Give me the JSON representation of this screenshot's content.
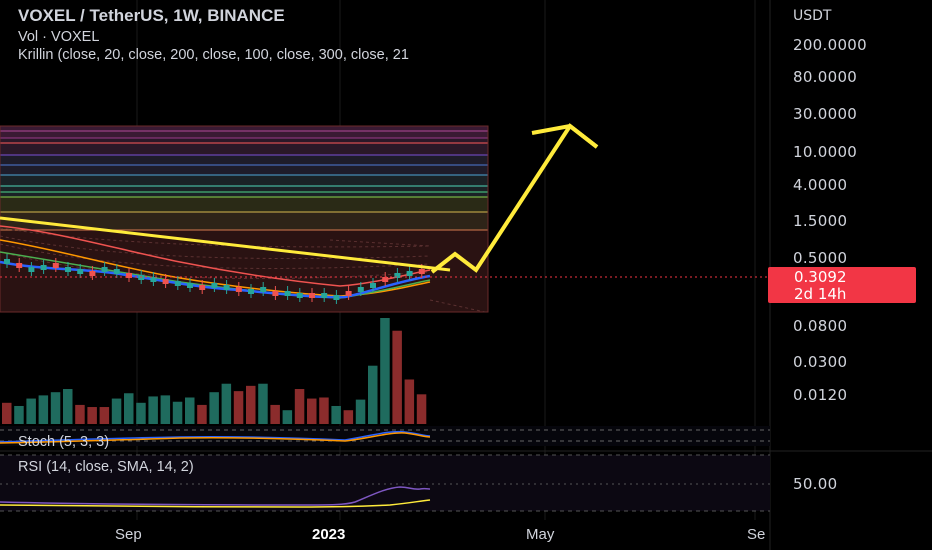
{
  "header": {
    "title": "VOXEL / TetherUS, 1W, BINANCE",
    "volume": "Vol · VOXEL",
    "indicator": "Krillin (close, 20, close, 200, close, 100, close, 300, close, 21"
  },
  "price_axis": {
    "currency": "USDT",
    "ticks": [
      "200.0000",
      "80.0000",
      "30.0000",
      "10.0000",
      "4.0000",
      "1.5000",
      "0.5000",
      "0.0800",
      "0.0300",
      "0.0120"
    ],
    "rsi_tick": "50.00"
  },
  "current_price": {
    "value": "0.3092",
    "countdown": "2d 14h"
  },
  "time_axis": {
    "ticks": [
      "Sep",
      "2023",
      "May",
      "Se"
    ]
  },
  "panes": {
    "stoch_label": "Stoch (5, 3, 3)",
    "rsi_label": "RSI (14, close, SMA, 14, 2)"
  },
  "colors": {
    "up": "#26a69a",
    "down": "#ef5350",
    "arrow": "#ffeb3b",
    "price_tag": "#f23645",
    "ma_blue": "#2962ff",
    "ma_green": "#4caf50"
  },
  "volume_bars": [
    {
      "v": 20,
      "up": false
    },
    {
      "v": 17,
      "up": true
    },
    {
      "v": 24,
      "up": true
    },
    {
      "v": 27,
      "up": true
    },
    {
      "v": 30,
      "up": true
    },
    {
      "v": 33,
      "up": true
    },
    {
      "v": 18,
      "up": false
    },
    {
      "v": 16,
      "up": false
    },
    {
      "v": 16,
      "up": false
    },
    {
      "v": 24,
      "up": true
    },
    {
      "v": 29,
      "up": true
    },
    {
      "v": 20,
      "up": true
    },
    {
      "v": 26,
      "up": true
    },
    {
      "v": 27,
      "up": true
    },
    {
      "v": 21,
      "up": true
    },
    {
      "v": 25,
      "up": true
    },
    {
      "v": 18,
      "up": false
    },
    {
      "v": 30,
      "up": true
    },
    {
      "v": 38,
      "up": true
    },
    {
      "v": 31,
      "up": false
    },
    {
      "v": 36,
      "up": false
    },
    {
      "v": 38,
      "up": true
    },
    {
      "v": 18,
      "up": false
    },
    {
      "v": 13,
      "up": true
    },
    {
      "v": 33,
      "up": false
    },
    {
      "v": 24,
      "up": false
    },
    {
      "v": 25,
      "up": false
    },
    {
      "v": 17,
      "up": true
    },
    {
      "v": 13,
      "up": false
    },
    {
      "v": 23,
      "up": true
    },
    {
      "v": 55,
      "up": true
    },
    {
      "v": 100,
      "up": true
    },
    {
      "v": 88,
      "up": false
    },
    {
      "v": 42,
      "up": false
    },
    {
      "v": 28,
      "up": false
    }
  ]
}
